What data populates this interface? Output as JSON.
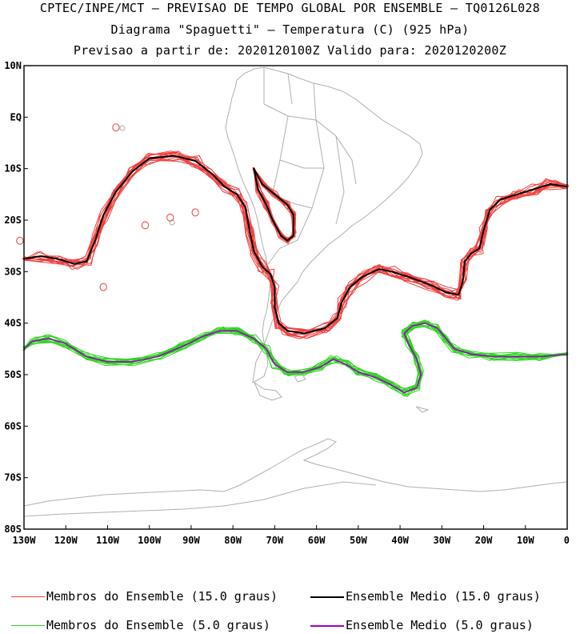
{
  "header": {
    "line1": "CPTEC/INPE/MCT – PREVISAO DE TEMPO GLOBAL POR ENSEMBLE – TQ0126L028",
    "line2": "Diagrama \"Spaguetti\" – Temperatura (C) (925 hPa)",
    "line3": "Previsao a partir de: 2020120100Z  Valido para: 2020120200Z"
  },
  "map": {
    "lat_labels": [
      "10N",
      "EQ",
      "10S",
      "20S",
      "30S",
      "40S",
      "50S",
      "60S",
      "70S",
      "80S"
    ],
    "lon_labels": [
      "130W",
      "120W",
      "110W",
      "100W",
      "90W",
      "80W",
      "70W",
      "60W",
      "50W",
      "40W",
      "30W",
      "20W",
      "10W",
      "0"
    ],
    "lat_range": [
      -80,
      10
    ],
    "lon_range": [
      -130,
      0
    ],
    "coast_color": "#b0b0b0"
  },
  "legend": [
    {
      "label": "Membros do Ensemble (15.0 graus)",
      "color": "#f0403c"
    },
    {
      "label": "Ensemble Medio (15.0 graus)",
      "color": "#000000"
    },
    {
      "label": "Membros do Ensemble (5.0 graus)",
      "color": "#2ed81e"
    },
    {
      "label": "Ensemble Medio (5.0 graus)",
      "color": "#a000c8"
    }
  ]
}
